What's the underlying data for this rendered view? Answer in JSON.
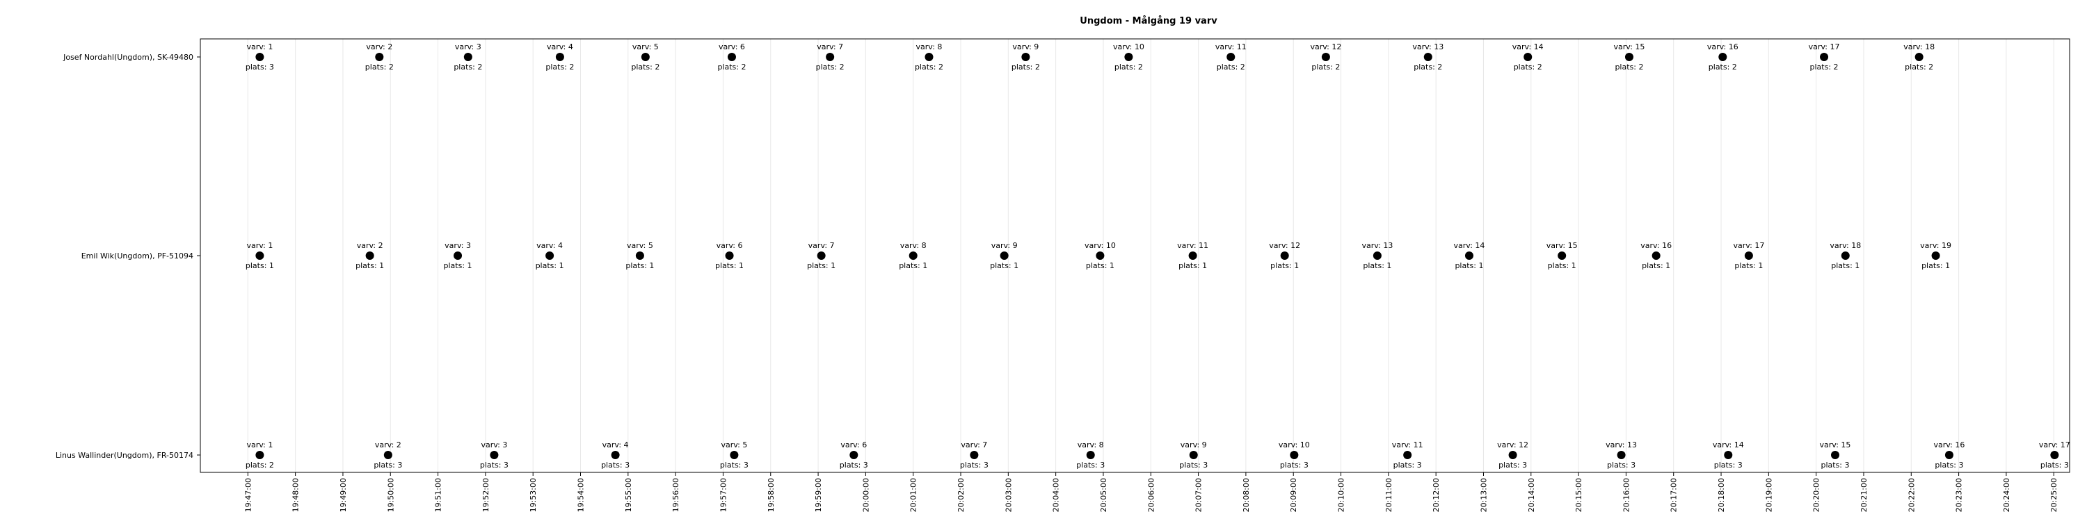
{
  "chart_data": {
    "type": "scatter",
    "title": "Ungdom - Målgång 19 varv",
    "xlabel": "",
    "ylabel": "",
    "grid": true,
    "x_tick_labels": [
      "19:47:00",
      "19:48:00",
      "19:49:00",
      "19:50:00",
      "19:51:00",
      "19:52:00",
      "19:53:00",
      "19:54:00",
      "19:55:00",
      "19:56:00",
      "19:57:00",
      "19:58:00",
      "19:59:00",
      "20:00:00",
      "20:01:00",
      "20:02:00",
      "20:03:00",
      "20:04:00",
      "20:05:00",
      "20:06:00",
      "20:07:00",
      "20:08:00",
      "20:09:00",
      "20:10:00",
      "20:11:00",
      "20:12:00",
      "20:13:00",
      "20:14:00",
      "20:15:00",
      "20:16:00",
      "20:17:00",
      "20:18:00",
      "20:19:00",
      "20:20:00",
      "20:21:00",
      "20:22:00",
      "20:23:00",
      "20:24:00",
      "20:25:00"
    ],
    "xlim": [
      "19:46:00",
      "20:25:20"
    ],
    "categories": [
      "Josef Nordahl(Ungdom), SK-49480",
      "Emil Wik(Ungdom), PF-51094",
      "Linus Wallinder(Ungdom), FR-50174"
    ],
    "series": [
      {
        "times": [
          "19:47:15",
          "19:49:46",
          "19:51:38",
          "19:53:34",
          "19:55:22",
          "19:57:11",
          "19:59:15",
          "20:01:20",
          "20:03:22",
          "20:05:32",
          "20:07:41",
          "20:09:41",
          "20:11:50",
          "20:13:56",
          "20:16:04",
          "20:18:02",
          "20:20:10",
          "20:22:10"
        ],
        "laps": [
          "varv: 1",
          "varv: 2",
          "varv: 3",
          "varv: 4",
          "varv: 5",
          "varv: 6",
          "varv: 7",
          "varv: 8",
          "varv: 9",
          "varv: 10",
          "varv: 11",
          "varv: 12",
          "varv: 13",
          "varv: 14",
          "varv: 15",
          "varv: 16",
          "varv: 17",
          "varv: 18"
        ],
        "places": [
          "plats: 3",
          "plats: 2",
          "plats: 2",
          "plats: 2",
          "plats: 2",
          "plats: 2",
          "plats: 2",
          "plats: 2",
          "plats: 2",
          "plats: 2",
          "plats: 2",
          "plats: 2",
          "plats: 2",
          "plats: 2",
          "plats: 2",
          "plats: 2",
          "plats: 2",
          "plats: 2"
        ]
      },
      {
        "times": [
          "19:47:15",
          "19:49:34",
          "19:51:25",
          "19:53:21",
          "19:55:15",
          "19:57:08",
          "19:59:04",
          "20:01:00",
          "20:02:55",
          "20:04:56",
          "20:06:53",
          "20:08:49",
          "20:10:46",
          "20:12:42",
          "20:14:39",
          "20:16:38",
          "20:18:35",
          "20:20:37",
          "20:22:31"
        ],
        "laps": [
          "varv: 1",
          "varv: 2",
          "varv: 3",
          "varv: 4",
          "varv: 5",
          "varv: 6",
          "varv: 7",
          "varv: 8",
          "varv: 9",
          "varv: 10",
          "varv: 11",
          "varv: 12",
          "varv: 13",
          "varv: 14",
          "varv: 15",
          "varv: 16",
          "varv: 17",
          "varv: 18",
          "varv: 19"
        ],
        "places": [
          "plats: 1",
          "plats: 1",
          "plats: 1",
          "plats: 1",
          "plats: 1",
          "plats: 1",
          "plats: 1",
          "plats: 1",
          "plats: 1",
          "plats: 1",
          "plats: 1",
          "plats: 1",
          "plats: 1",
          "plats: 1",
          "plats: 1",
          "plats: 1",
          "plats: 1",
          "plats: 1",
          "plats: 1"
        ]
      },
      {
        "times": [
          "19:47:15",
          "19:49:57",
          "19:52:11",
          "19:54:44",
          "19:57:14",
          "19:59:45",
          "20:02:17",
          "20:04:44",
          "20:06:54",
          "20:09:01",
          "20:11:24",
          "20:13:37",
          "20:15:54",
          "20:18:09",
          "20:20:24",
          "20:22:48",
          "20:25:01"
        ],
        "laps": [
          "varv: 1",
          "varv: 2",
          "varv: 3",
          "varv: 4",
          "varv: 5",
          "varv: 6",
          "varv: 7",
          "varv: 8",
          "varv: 9",
          "varv: 10",
          "varv: 11",
          "varv: 12",
          "varv: 13",
          "varv: 14",
          "varv: 15",
          "varv: 16",
          "varv: 17"
        ],
        "places": [
          "plats: 2",
          "plats: 3",
          "plats: 3",
          "plats: 3",
          "plats: 3",
          "plats: 3",
          "plats: 3",
          "plats: 3",
          "plats: 3",
          "plats: 3",
          "plats: 3",
          "plats: 3",
          "plats: 3",
          "plats: 3",
          "plats: 3",
          "plats: 3",
          "plats: 3"
        ]
      }
    ],
    "colors": {
      "point": "#000000",
      "grid": "#e8e8e8",
      "frame": "#000000"
    }
  }
}
